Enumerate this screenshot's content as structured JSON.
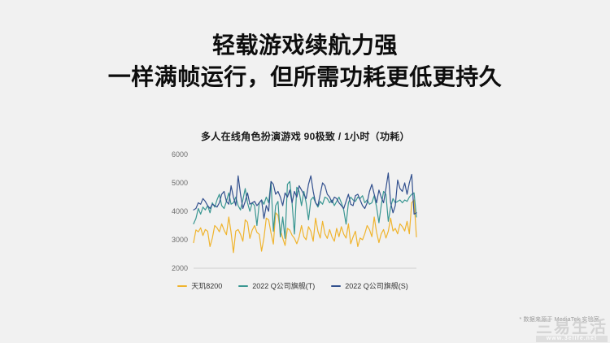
{
  "slide": {
    "title_line1": "轻载游戏续航力强",
    "title_line2": "一样满帧运行，但所需功耗更低更持久",
    "footnote": "* 数据来源于 MediaTek 实验室",
    "watermark": {
      "logo_text": "三易生活",
      "url_text": "www.3elife.net"
    }
  },
  "colors": {
    "background": "#F1F1F1",
    "title_text": "#0D0D0D",
    "axis_line": "#CFCFCF",
    "tick_text": "#6E6E6E"
  },
  "chart_data": {
    "type": "line",
    "title": "多人在线角色扮演游戏 90极致 / 1小时（功耗）",
    "xlabel": "",
    "ylabel": "",
    "ylim": [
      2000,
      6000
    ],
    "yticks": [
      2000,
      3000,
      4000,
      5000,
      6000
    ],
    "grid": false,
    "legend_position": "bottom",
    "series": [
      {
        "name": "天玑8200",
        "color": "#F0B42E",
        "values": [
          2900,
          3350,
          3280,
          3420,
          3150,
          3360,
          3300,
          2760,
          3060,
          3500,
          3420,
          3280,
          3560,
          3340,
          3180,
          3800,
          3260,
          2550,
          3310,
          3360,
          3190,
          2950,
          3700,
          3620,
          3050,
          3340,
          3500,
          3260,
          3190,
          2600,
          3060,
          3760,
          3700,
          3240,
          2850,
          3950,
          3860,
          3340,
          3060,
          2800,
          3400,
          3340,
          3160,
          3050,
          2860,
          3100,
          3500,
          3110,
          3000,
          3460,
          3300,
          2950,
          3760,
          3300,
          3060,
          3650,
          3210,
          3050,
          3360,
          3100,
          2950,
          3400,
          3110,
          3460,
          3200,
          3060,
          3560,
          2860,
          3100,
          3300,
          2760,
          3060,
          3000,
          3210,
          3500,
          3360,
          3110,
          3800,
          3260,
          2900,
          3210,
          3360,
          3060,
          3300,
          3760,
          3310,
          3400,
          3210,
          3560,
          3460,
          3310,
          3650,
          3210,
          4300,
          4400,
          3100
        ]
      },
      {
        "name": "2022 Q公司旗舰(T)",
        "color": "#3A9792",
        "values": [
          3560,
          3750,
          4100,
          3900,
          4150,
          4050,
          4200,
          3950,
          4300,
          4150,
          4400,
          4600,
          4200,
          4100,
          4350,
          4650,
          4250,
          4300,
          4500,
          4200,
          4050,
          4400,
          4800,
          4300,
          4000,
          4300,
          4200,
          3500,
          4300,
          4400,
          4250,
          4500,
          4300,
          5050,
          3300,
          4200,
          4350,
          3100,
          3800,
          3050,
          4950,
          5050,
          4300,
          3200,
          4850,
          4700,
          4200,
          4700,
          4300,
          3700,
          4400,
          4500,
          4300,
          4150,
          4350,
          4250,
          4500,
          4450,
          4300,
          4400,
          4200,
          4350,
          4500,
          4300,
          4050,
          3550,
          4300,
          4500,
          4400,
          4350,
          4500,
          4450,
          4550,
          4300,
          4400,
          4250,
          4300,
          4550,
          4150,
          3600,
          4200,
          4700,
          4600,
          3650,
          4150,
          4450,
          4300,
          4350,
          4400,
          4300,
          4400,
          4350,
          4500,
          4600,
          4650,
          3800
        ]
      },
      {
        "name": "2022 Q公司旗舰(S)",
        "color": "#32508E",
        "values": [
          4050,
          4100,
          4300,
          4250,
          4450,
          4350,
          4200,
          4100,
          4250,
          4200,
          4150,
          4300,
          4600,
          4700,
          4350,
          4250,
          4900,
          4500,
          4200,
          5250,
          4600,
          4100,
          4350,
          4650,
          4250,
          4300,
          4350,
          4200,
          4300,
          4400,
          3750,
          4200,
          4000,
          5050,
          4950,
          4600,
          4700,
          4500,
          4200,
          4650,
          4500,
          4750,
          4300,
          4700,
          4500,
          4900,
          4750,
          4600,
          4450,
          4950,
          5250,
          4700,
          4300,
          4200,
          4600,
          5000,
          4900,
          4600,
          4500,
          4300,
          4500,
          4450,
          4300,
          4200,
          4100,
          4350,
          4600,
          4250,
          4200,
          4550,
          4600,
          4400,
          4200,
          4100,
          4300,
          4700,
          4950,
          4600,
          4300,
          4750,
          4500,
          4300,
          4800,
          5350,
          4300,
          3950,
          4200,
          5100,
          4800,
          4700,
          5000,
          4600,
          5000,
          5300,
          3900,
          3950
        ]
      }
    ]
  }
}
